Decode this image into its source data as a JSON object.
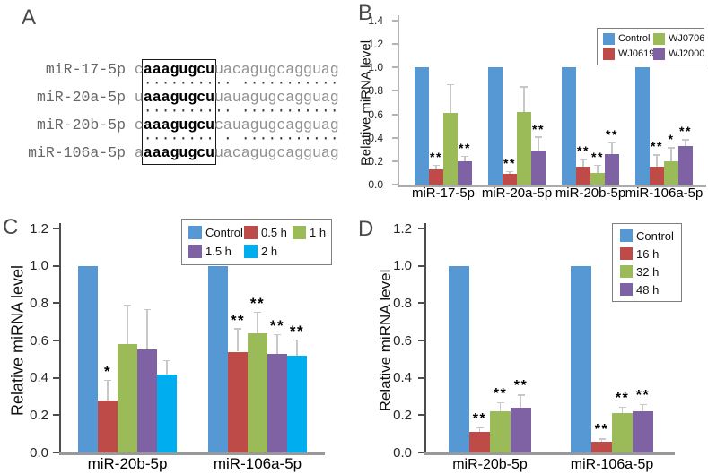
{
  "panels": {
    "A": {
      "label": "A"
    },
    "B": {
      "label": "B"
    },
    "C": {
      "label": "C"
    },
    "D": {
      "label": "D"
    }
  },
  "alignment": {
    "seed": "aaagugcu",
    "rows": [
      {
        "name": "miR-17-5p",
        "prefix": "c",
        "seed": "aaagugcu",
        "suffix": "uacagugcagguag"
      },
      {
        "name": "miR-20a-5p",
        "prefix": "u",
        "seed": "aaagugcu",
        "suffix": "uauagugcagguag"
      },
      {
        "name": "miR-20b-5p",
        "prefix": "c",
        "seed": "aaagugcu",
        "suffix": "cauagugcagguag"
      },
      {
        "name": "miR-106a-5p",
        "prefix": "a",
        "seed": "aaagugcu",
        "suffix": "uacagugcagguag"
      }
    ],
    "match_rows": [
      " ·········· ···········",
      " ·········· ···········",
      " ········ · ···········"
    ]
  },
  "chart_data": [
    {
      "panel": "B",
      "type": "bar",
      "ylabel": "Relative miRNA level",
      "ylim": [
        0,
        1.4
      ],
      "ytick_step": 0.2,
      "grid": false,
      "legend_position": "top-right",
      "legend_items": [
        "Control",
        "WJ0706",
        "WJ0619",
        "WJ2000"
      ],
      "categories": [
        "miR-17-5p",
        "miR-20a-5p",
        "miR-20b-5p",
        "miR-106a-5p"
      ],
      "series": [
        {
          "name": "Control",
          "color": "#5598D3",
          "values": [
            1.0,
            1.0,
            1.0,
            1.0
          ],
          "errors": [
            0,
            0,
            0,
            0
          ],
          "sig": [
            "",
            "",
            "",
            ""
          ]
        },
        {
          "name": "WJ0619",
          "color": "#BE4B48",
          "values": [
            0.13,
            0.09,
            0.15,
            0.15
          ],
          "errors": [
            0.04,
            0.025,
            0.07,
            0.11
          ],
          "sig": [
            "**",
            "**",
            "**",
            "**"
          ]
        },
        {
          "name": "WJ0706",
          "color": "#9BBB59",
          "values": [
            0.61,
            0.62,
            0.1,
            0.2
          ],
          "errors": [
            0.25,
            0.22,
            0.07,
            0.12
          ],
          "sig": [
            "",
            "",
            "**",
            "*"
          ]
        },
        {
          "name": "WJ2000",
          "color": "#7E62A3",
          "values": [
            0.2,
            0.29,
            0.26,
            0.33
          ],
          "errors": [
            0.045,
            0.12,
            0.1,
            0.06
          ],
          "sig": [
            "**",
            "**",
            "**",
            "**"
          ]
        }
      ]
    },
    {
      "panel": "C",
      "type": "bar",
      "ylabel": "Relative miRNA level",
      "ylim": [
        0,
        1.2
      ],
      "ytick_step": 0.2,
      "grid": false,
      "legend_position": "top-right",
      "legend_items": [
        "Control",
        "0.5 h",
        "1 h",
        "1.5 h",
        "2 h"
      ],
      "categories": [
        "miR-20b-5p",
        "miR-106a-5p"
      ],
      "series": [
        {
          "name": "Control",
          "color": "#5598D3",
          "values": [
            1.0,
            1.0
          ],
          "errors": [
            0,
            0
          ],
          "sig": [
            "",
            ""
          ]
        },
        {
          "name": "0.5 h",
          "color": "#BE4B48",
          "values": [
            0.28,
            0.54
          ],
          "errors": [
            0.11,
            0.125
          ],
          "sig": [
            "*",
            "**"
          ]
        },
        {
          "name": "1 h",
          "color": "#9BBB59",
          "values": [
            0.58,
            0.64
          ],
          "errors": [
            0.21,
            0.115
          ],
          "sig": [
            "",
            "**"
          ]
        },
        {
          "name": "1.5 h",
          "color": "#7E62A3",
          "values": [
            0.55,
            0.53
          ],
          "errors": [
            0.22,
            0.105
          ],
          "sig": [
            "",
            "**"
          ]
        },
        {
          "name": "2 h",
          "color": "#00AEEF",
          "values": [
            0.42,
            0.52
          ],
          "errors": [
            0.075,
            0.085
          ],
          "sig": [
            "",
            "**"
          ]
        }
      ]
    },
    {
      "panel": "D",
      "type": "bar",
      "ylabel": "Relative miRNA level",
      "ylim": [
        0,
        1.2
      ],
      "ytick_step": 0.2,
      "grid": false,
      "legend_position": "top-right",
      "legend_items": [
        "Control",
        "16 h",
        "32 h",
        "48 h"
      ],
      "categories": [
        "miR-20b-5p",
        "miR-106a-5p"
      ],
      "series": [
        {
          "name": "Control",
          "color": "#5598D3",
          "values": [
            1.0,
            1.0
          ],
          "errors": [
            0,
            0
          ],
          "sig": [
            "",
            ""
          ]
        },
        {
          "name": "16 h",
          "color": "#BE4B48",
          "values": [
            0.11,
            0.06
          ],
          "errors": [
            0.025,
            0.015
          ],
          "sig": [
            "**",
            "**"
          ]
        },
        {
          "name": "32 h",
          "color": "#9BBB59",
          "values": [
            0.22,
            0.21
          ],
          "errors": [
            0.05,
            0.035
          ],
          "sig": [
            "**",
            "**"
          ]
        },
        {
          "name": "48 h",
          "color": "#7E62A3",
          "values": [
            0.24,
            0.22
          ],
          "errors": [
            0.07,
            0.04
          ],
          "sig": [
            "**",
            "**"
          ]
        }
      ]
    }
  ]
}
